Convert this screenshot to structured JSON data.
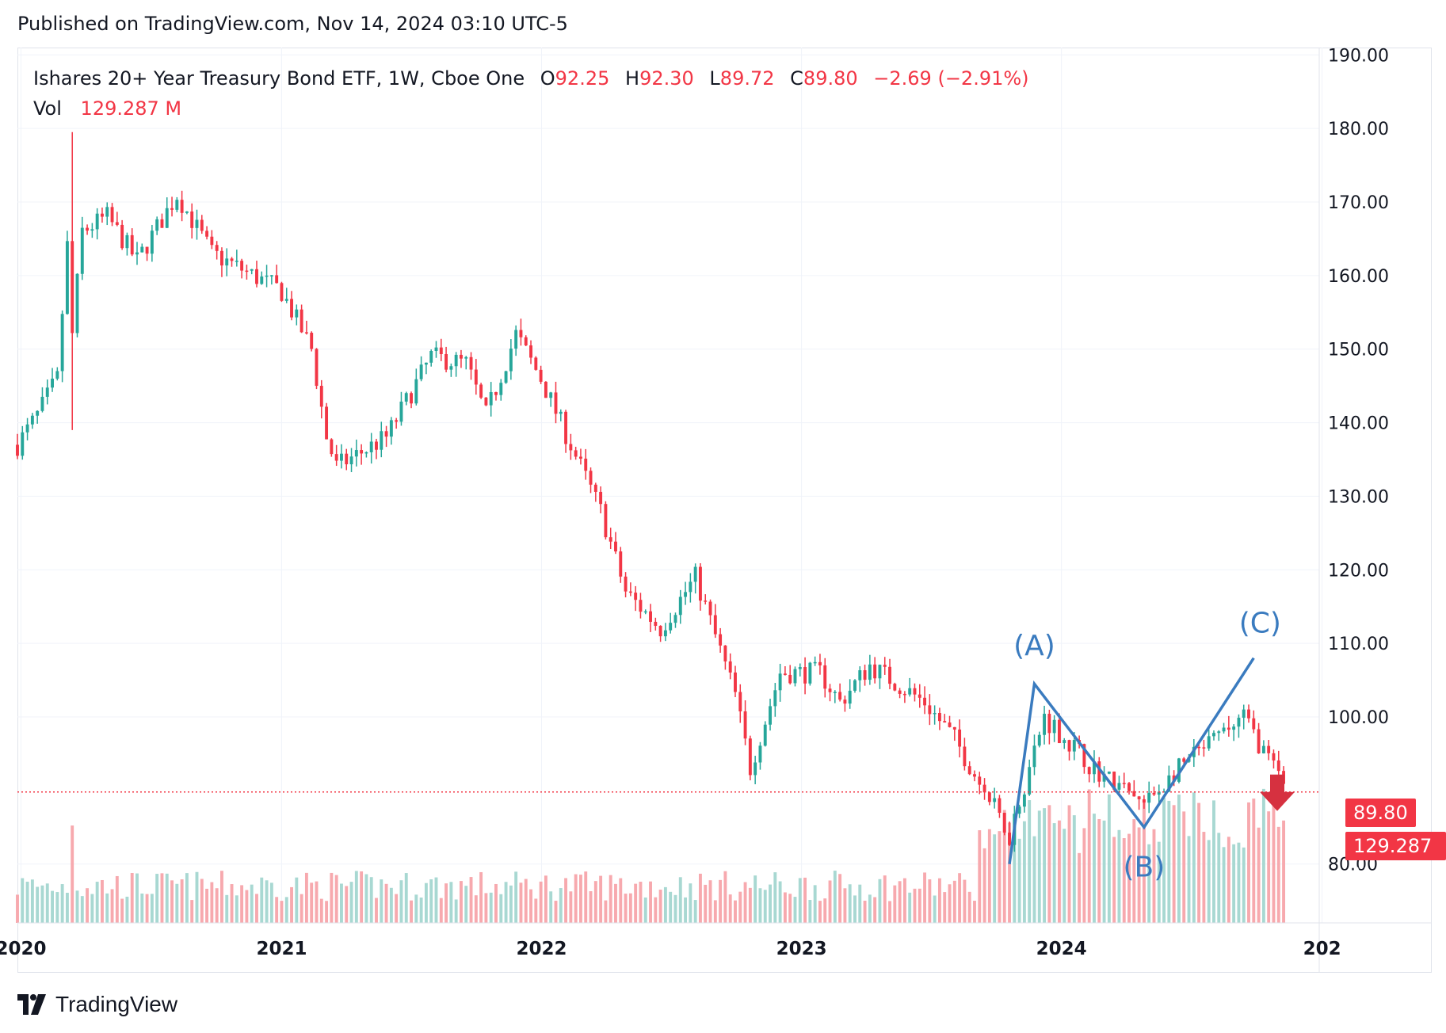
{
  "header": {
    "published_text": "Published on TradingView.com, Nov 14, 2024 03:10 UTC-5"
  },
  "legend": {
    "symbol_text": "Ishares 20+ Year Treasury Bond ETF, 1W, Cboe One",
    "open_key": "O",
    "open_value": "92.25",
    "high_key": "H",
    "high_value": "92.30",
    "low_key": "L",
    "low_value": "89.72",
    "close_key": "C",
    "close_value": "89.80",
    "change_text": "−2.69 (−2.91%)",
    "vol_key": "Vol",
    "vol_value": "129.287 M"
  },
  "price_tags": {
    "last_price": "89.80",
    "last_volume": "129.287 M"
  },
  "branding": {
    "logo_text": "TradingView",
    "logo_icon": "tradingview-logo-icon"
  },
  "colors": {
    "up": "#26a69a",
    "down": "#f23645",
    "up_volume": "#a8d8d2",
    "down_volume": "#f7a9ae",
    "annotation": "#3a7bbf",
    "grid": "#f0f3fa",
    "text": "#131722"
  },
  "chart_data": {
    "type": "candlestick",
    "title": "Ishares 20+ Year Treasury Bond ETF, 1W, Cboe One",
    "y_axis": {
      "ticks": [
        "190.00",
        "180.00",
        "170.00",
        "160.00",
        "150.00",
        "140.00",
        "130.00",
        "120.00",
        "110.00",
        "100.00",
        "80.00"
      ],
      "range": [
        72,
        191
      ]
    },
    "x_axis": {
      "ticks": [
        "2020",
        "2021",
        "2022",
        "2023",
        "2024",
        "202"
      ],
      "range": [
        "2019-12-27",
        "2024-12-28"
      ]
    },
    "grid": true,
    "last_price_line": 89.8,
    "anchors": [
      [
        "2019-12-27",
        137
      ],
      [
        "2020-01-24",
        141
      ],
      [
        "2020-02-21",
        146
      ],
      [
        "2020-03-06",
        164
      ],
      [
        "2020-03-13",
        152
      ],
      [
        "2020-03-27",
        166
      ],
      [
        "2020-05-01",
        168
      ],
      [
        "2020-06-12",
        162
      ],
      [
        "2020-08-07",
        171
      ],
      [
        "2020-09-25",
        163
      ],
      [
        "2020-12-31",
        158
      ],
      [
        "2021-02-12",
        150
      ],
      [
        "2021-03-05",
        138
      ],
      [
        "2021-03-19",
        134
      ],
      [
        "2021-05-28",
        138
      ],
      [
        "2021-07-30",
        149
      ],
      [
        "2021-09-17",
        148
      ],
      [
        "2021-10-15",
        141
      ],
      [
        "2021-11-26",
        152
      ],
      [
        "2021-12-31",
        146
      ],
      [
        "2022-02-11",
        137
      ],
      [
        "2022-03-25",
        128
      ],
      [
        "2022-04-29",
        117
      ],
      [
        "2022-06-17",
        112
      ],
      [
        "2022-08-05",
        119
      ],
      [
        "2022-09-30",
        103
      ],
      [
        "2022-10-21",
        93
      ],
      [
        "2022-12-02",
        106
      ],
      [
        "2023-01-27",
        106
      ],
      [
        "2023-02-24",
        102
      ],
      [
        "2023-04-07",
        107
      ],
      [
        "2023-06-23",
        102
      ],
      [
        "2023-08-04",
        97
      ],
      [
        "2023-10-20",
        84
      ],
      [
        "2023-12-08",
        100
      ],
      [
        "2024-02-16",
        93
      ],
      [
        "2024-04-26",
        88
      ],
      [
        "2024-06-14",
        93
      ],
      [
        "2024-09-13",
        100
      ],
      [
        "2024-11-14",
        89.8
      ]
    ],
    "volume": {
      "last_value": "129.287 M"
    },
    "annotations": [
      {
        "label": "(A)",
        "date": "2023-11-24",
        "price": 104.5
      },
      {
        "label": "(B)",
        "date": "2024-04-26",
        "price": 85
      },
      {
        "label": "(C)",
        "date": "2024-09-27",
        "price": 108
      },
      {
        "label": "",
        "date": "2023-10-20",
        "price": 80
      }
    ]
  }
}
